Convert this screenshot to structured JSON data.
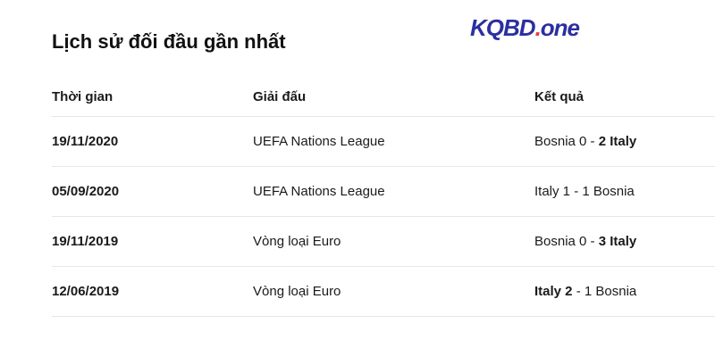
{
  "title": "Lịch sử đối đầu gần nhất",
  "logo": {
    "main": "KQBD",
    "dot": ".",
    "suffix": "one",
    "colors": {
      "text": "#2b2fa0",
      "dot": "#e8384f"
    }
  },
  "table": {
    "headers": [
      "Thời gian",
      "Giải đấu",
      "Kết quả"
    ],
    "rows": [
      {
        "date": "19/11/2020",
        "league": "UEFA Nations League",
        "home": "Bosnia 0",
        "sep": " - ",
        "away": "2 Italy",
        "winner": "away"
      },
      {
        "date": "05/09/2020",
        "league": "UEFA Nations League",
        "home": "Italy 1",
        "sep": " - ",
        "away": "1 Bosnia",
        "winner": "none"
      },
      {
        "date": "19/11/2019",
        "league": "Vòng loại Euro",
        "home": "Bosnia 0",
        "sep": " - ",
        "away": "3 Italy",
        "winner": "away"
      },
      {
        "date": "12/06/2019",
        "league": "Vòng loại Euro",
        "home": "Italy 2",
        "sep": " - ",
        "away": "1 Bosnia",
        "winner": "home"
      }
    ]
  }
}
